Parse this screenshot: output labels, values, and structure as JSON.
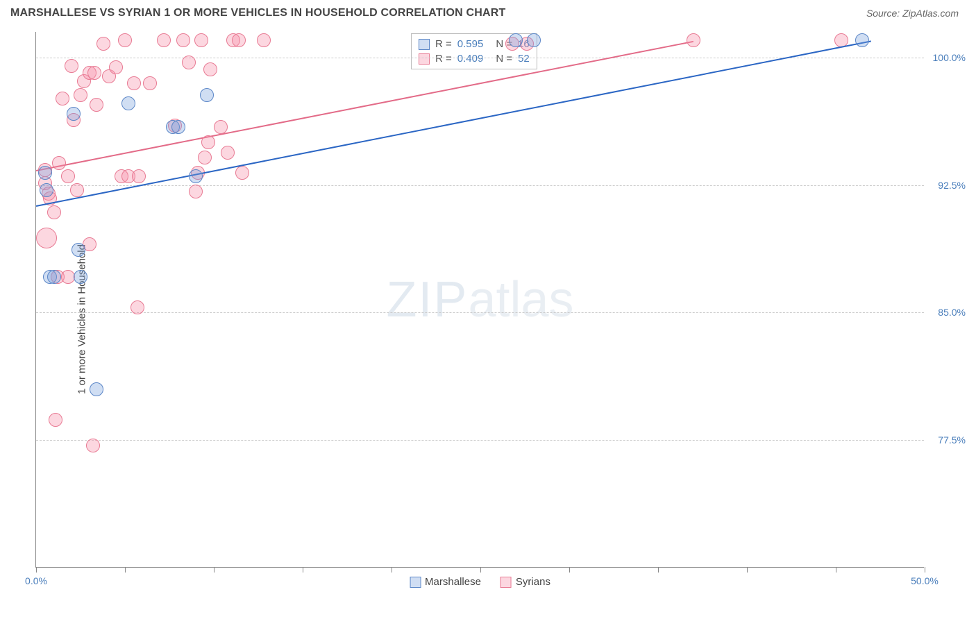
{
  "header": {
    "title": "MARSHALLESE VS SYRIAN 1 OR MORE VEHICLES IN HOUSEHOLD CORRELATION CHART",
    "source": "Source: ZipAtlas.com"
  },
  "chart": {
    "type": "scatter",
    "ylabel": "1 or more Vehicles in Household",
    "watermark_zip": "ZIP",
    "watermark_atlas": "atlas",
    "xlim": [
      0,
      50
    ],
    "ylim": [
      70,
      101.5
    ],
    "xtick_positions": [
      0,
      5,
      10,
      15,
      20,
      25,
      30,
      35,
      40,
      45,
      50
    ],
    "xtick_labels": {
      "0": "0.0%",
      "50": "50.0%"
    },
    "ytick_positions": [
      77.5,
      85.0,
      92.5,
      100.0
    ],
    "ytick_labels": [
      "77.5%",
      "85.0%",
      "92.5%",
      "100.0%"
    ],
    "grid_color": "#cccccc",
    "background_color": "#ffffff",
    "axis_color": "#888888",
    "tick_label_color": "#4a7ebb",
    "point_radius": 10,
    "point_stroke_width": 1.5,
    "series": [
      {
        "name": "Marshallese",
        "fill_color": "rgba(120,160,220,0.35)",
        "stroke_color": "#5b86c7",
        "R": "0.595",
        "N": "16",
        "trend": {
          "x1": 0,
          "y1": 91.3,
          "x2": 47,
          "y2": 101.0,
          "color": "#2b66c4",
          "width": 2
        },
        "points": [
          {
            "x": 0.5,
            "y": 93.2
          },
          {
            "x": 0.6,
            "y": 92.2
          },
          {
            "x": 0.8,
            "y": 87.1
          },
          {
            "x": 1.0,
            "y": 87.1
          },
          {
            "x": 2.1,
            "y": 96.7
          },
          {
            "x": 2.4,
            "y": 88.7
          },
          {
            "x": 2.5,
            "y": 87.1
          },
          {
            "x": 3.4,
            "y": 80.5
          },
          {
            "x": 5.2,
            "y": 97.3
          },
          {
            "x": 7.7,
            "y": 95.9
          },
          {
            "x": 8.0,
            "y": 95.9
          },
          {
            "x": 9.0,
            "y": 93.0
          },
          {
            "x": 9.6,
            "y": 97.8
          },
          {
            "x": 27.0,
            "y": 101.0
          },
          {
            "x": 28.0,
            "y": 101.0
          },
          {
            "x": 46.5,
            "y": 101.0
          }
        ]
      },
      {
        "name": "Syrians",
        "fill_color": "rgba(245,140,165,0.35)",
        "stroke_color": "#e87a93",
        "R": "0.409",
        "N": "52",
        "trend": {
          "x1": 0,
          "y1": 93.4,
          "x2": 37,
          "y2": 101.0,
          "color": "#e36b88",
          "width": 2
        },
        "points": [
          {
            "x": 0.5,
            "y": 93.4
          },
          {
            "x": 0.5,
            "y": 92.6
          },
          {
            "x": 0.6,
            "y": 89.4,
            "r": 15
          },
          {
            "x": 0.7,
            "y": 92.0
          },
          {
            "x": 0.8,
            "y": 91.7
          },
          {
            "x": 1.0,
            "y": 90.9
          },
          {
            "x": 1.1,
            "y": 78.7
          },
          {
            "x": 1.2,
            "y": 87.1
          },
          {
            "x": 1.3,
            "y": 93.8
          },
          {
            "x": 1.5,
            "y": 97.6
          },
          {
            "x": 1.8,
            "y": 93.0
          },
          {
            "x": 1.8,
            "y": 87.1
          },
          {
            "x": 2.0,
            "y": 99.5
          },
          {
            "x": 2.1,
            "y": 96.3
          },
          {
            "x": 2.3,
            "y": 92.2
          },
          {
            "x": 2.5,
            "y": 97.8
          },
          {
            "x": 2.7,
            "y": 98.6
          },
          {
            "x": 3.0,
            "y": 99.1
          },
          {
            "x": 3.0,
            "y": 89.0
          },
          {
            "x": 3.2,
            "y": 77.2
          },
          {
            "x": 3.3,
            "y": 99.1
          },
          {
            "x": 3.4,
            "y": 97.2
          },
          {
            "x": 3.8,
            "y": 100.8
          },
          {
            "x": 4.1,
            "y": 98.9
          },
          {
            "x": 4.5,
            "y": 99.4
          },
          {
            "x": 4.8,
            "y": 93.0
          },
          {
            "x": 5.0,
            "y": 101.0
          },
          {
            "x": 5.2,
            "y": 93.0
          },
          {
            "x": 5.5,
            "y": 98.5
          },
          {
            "x": 5.7,
            "y": 85.3
          },
          {
            "x": 5.8,
            "y": 93.0
          },
          {
            "x": 6.4,
            "y": 98.5
          },
          {
            "x": 7.2,
            "y": 101.0
          },
          {
            "x": 7.8,
            "y": 96.0
          },
          {
            "x": 8.3,
            "y": 101.0
          },
          {
            "x": 8.6,
            "y": 99.7
          },
          {
            "x": 9.1,
            "y": 93.2
          },
          {
            "x": 9.0,
            "y": 92.1
          },
          {
            "x": 9.3,
            "y": 101.0
          },
          {
            "x": 9.5,
            "y": 94.1
          },
          {
            "x": 9.7,
            "y": 95.0
          },
          {
            "x": 9.8,
            "y": 99.3
          },
          {
            "x": 10.4,
            "y": 95.9
          },
          {
            "x": 10.8,
            "y": 94.4
          },
          {
            "x": 11.1,
            "y": 101.0
          },
          {
            "x": 11.4,
            "y": 101.0
          },
          {
            "x": 11.6,
            "y": 93.2
          },
          {
            "x": 12.8,
            "y": 101.0
          },
          {
            "x": 26.8,
            "y": 100.8
          },
          {
            "x": 27.6,
            "y": 100.8
          },
          {
            "x": 37.0,
            "y": 101.0
          },
          {
            "x": 45.3,
            "y": 101.0
          }
        ]
      }
    ],
    "legend": {
      "items": [
        {
          "label": "Marshallese",
          "series_index": 0
        },
        {
          "label": "Syrians",
          "series_index": 1
        }
      ]
    }
  }
}
